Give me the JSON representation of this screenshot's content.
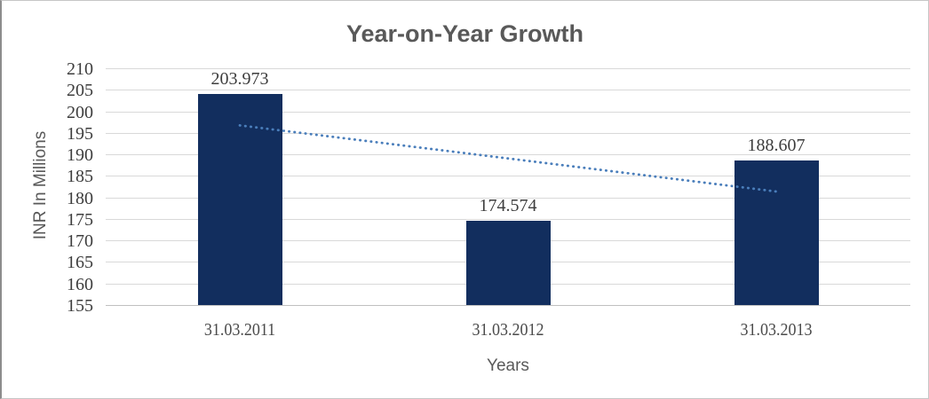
{
  "window": {
    "background": "#ffffff",
    "border_color": "#c6c6c6"
  },
  "chart_data": {
    "type": "bar",
    "title": "Year-on-Year Growth",
    "categories": [
      "31.03.2011",
      "31.03.2012",
      "31.03.2013"
    ],
    "values": [
      203.973,
      174.574,
      188.607
    ],
    "value_labels": [
      "203.973",
      "174.574",
      "188.607"
    ],
    "xlabel": "Years",
    "ylabel": "INR In Millions",
    "ylim": [
      155,
      210
    ],
    "yticks": [
      155,
      160,
      165,
      170,
      175,
      180,
      185,
      190,
      195,
      200,
      205,
      210
    ],
    "grid": true,
    "legend": "none",
    "bar_color": "#122e5e",
    "title_color": "#595959",
    "tick_label_color": "#3d3d3d",
    "gridline_color": "#d9d9d9",
    "trendline": {
      "type": "linear",
      "style": "dotted",
      "color": "#4a7ebb",
      "endpoints": [
        196.73,
        181.37
      ]
    }
  }
}
